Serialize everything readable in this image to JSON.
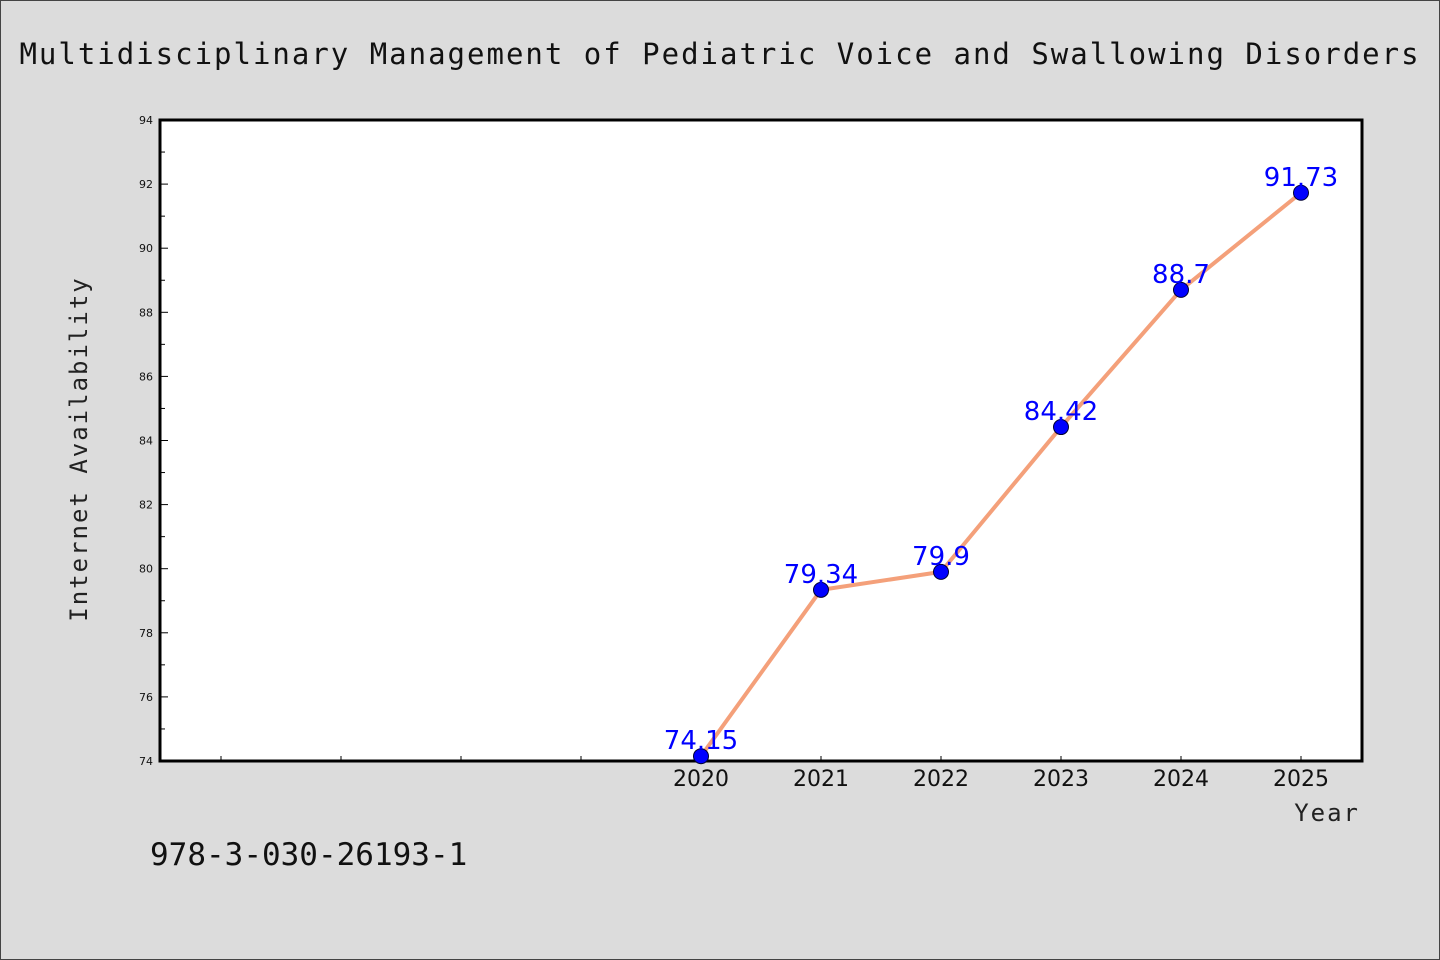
{
  "chart_data": {
    "type": "line",
    "title": "Multidisciplinary Management of Pediatric Voice and Swallowing Disorders",
    "xlabel": "Year",
    "ylabel": "Internet Availability",
    "x": [
      "2020",
      "2021",
      "2022",
      "2023",
      "2024",
      "2025"
    ],
    "series": [
      {
        "values": [
          74.15,
          79.34,
          79.9,
          84.42,
          88.7,
          91.73
        ]
      }
    ],
    "data_labels": [
      "74.15",
      "79.34",
      "79.9",
      "84.42",
      "88.7",
      "91.73"
    ],
    "y_ticks": [
      "74",
      "76",
      "78",
      "80",
      "82",
      "84",
      "86",
      "88",
      "90",
      "92",
      "94"
    ],
    "ylim": [
      74,
      94
    ],
    "grid": false,
    "line_color": "#f4a07a",
    "marker_color": "#0000ff",
    "label_color": "#0000ff",
    "background_color": "#dcdcdc",
    "plot_background_color": "#ffffff"
  },
  "footer": {
    "isbn": "978-3-030-26193-1"
  }
}
